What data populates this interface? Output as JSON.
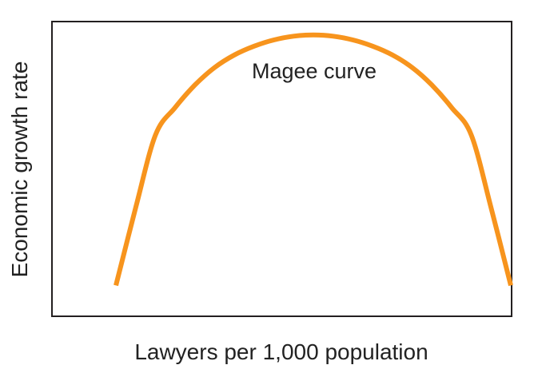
{
  "chart_data": {
    "type": "line",
    "xlabel": "Lawyers per 1,000 population",
    "ylabel": "Economic growth rate",
    "series": [
      {
        "name": "Magee curve",
        "x": [
          0.0,
          0.05,
          0.1,
          0.15,
          0.2,
          0.25,
          0.3,
          0.35,
          0.4,
          0.45,
          0.5,
          0.55,
          0.6,
          0.65,
          0.7,
          0.75,
          0.8,
          0.85,
          0.9,
          0.95,
          1.0
        ],
        "y": [
          0.0,
          0.31,
          0.6,
          0.71,
          0.8,
          0.87,
          0.92,
          0.955,
          0.98,
          0.995,
          1.0,
          0.995,
          0.98,
          0.955,
          0.92,
          0.87,
          0.8,
          0.71,
          0.6,
          0.31,
          0.0
        ]
      }
    ],
    "xlim": [
      -0.16,
      1.0
    ],
    "ylim": [
      -0.12,
      1.05
    ],
    "grid": false,
    "ticks": false,
    "legend": "none",
    "colors": {
      "curve": "#F7941D",
      "frame": "#231F20",
      "text": "#222222"
    }
  }
}
